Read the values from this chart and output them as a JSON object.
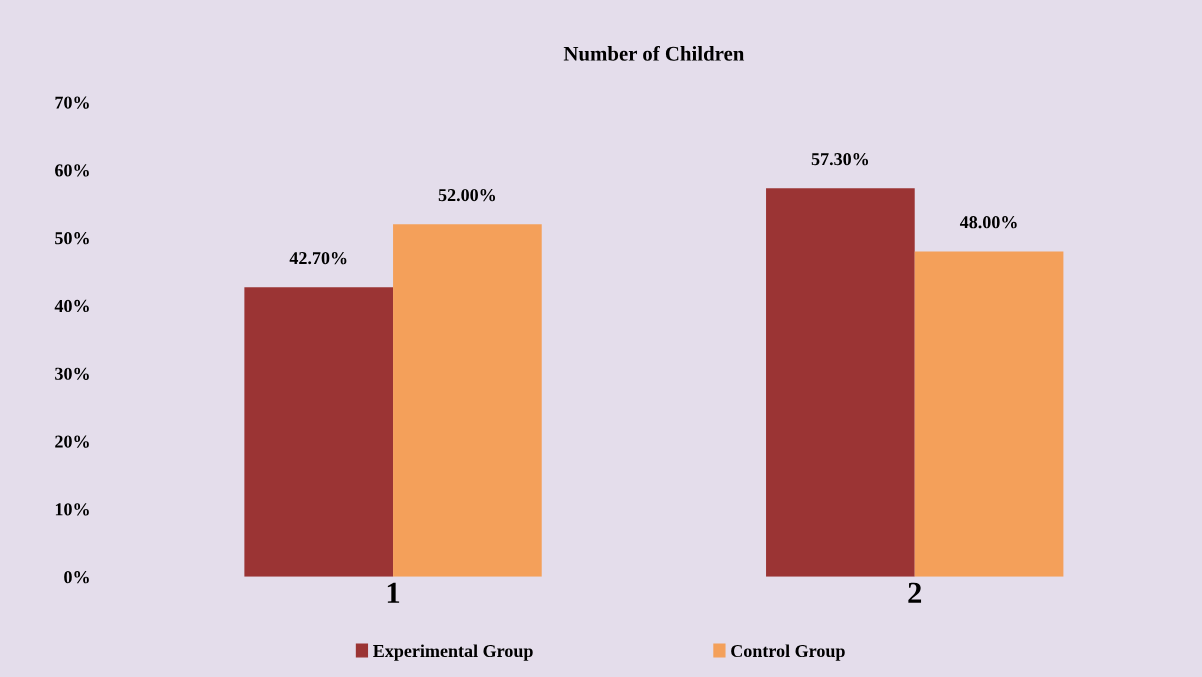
{
  "chart_data": {
    "type": "bar",
    "title": "Number of Children",
    "categories": [
      "1",
      "2"
    ],
    "series": [
      {
        "name": "Experimental Group",
        "color": "#9b3434",
        "values": [
          42.7,
          57.3
        ],
        "value_labels": [
          "42.70%",
          "57.30%"
        ]
      },
      {
        "name": "Control Group",
        "color": "#f4a05a",
        "values": [
          52.0,
          48.0
        ],
        "value_labels": [
          "52.00%",
          "48.00%"
        ]
      }
    ],
    "ylim": [
      0,
      70
    ],
    "yticks": [
      {
        "value": 0,
        "label": "0%"
      },
      {
        "value": 10,
        "label": "10%"
      },
      {
        "value": 20,
        "label": "20%"
      },
      {
        "value": 30,
        "label": "30%"
      },
      {
        "value": 40,
        "label": "40%"
      },
      {
        "value": 50,
        "label": "50%"
      },
      {
        "value": 60,
        "label": "60%"
      },
      {
        "value": 70,
        "label": "70%"
      }
    ],
    "grid": false,
    "legend": "bottom"
  }
}
